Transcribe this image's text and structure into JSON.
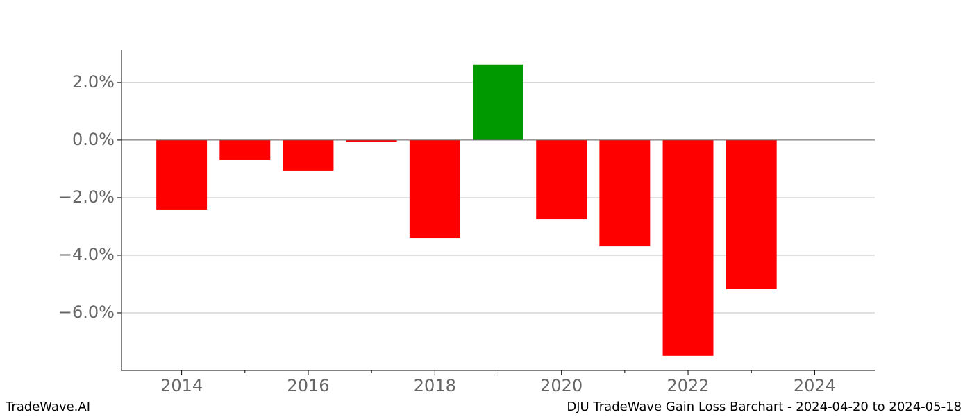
{
  "chart_data": {
    "type": "bar",
    "x": [
      2014,
      2015,
      2016,
      2017,
      2018,
      2019,
      2020,
      2021,
      2022,
      2023
    ],
    "values": [
      -2.41,
      -0.7,
      -1.06,
      -0.07,
      -3.4,
      2.63,
      -2.75,
      -3.69,
      -7.49,
      -5.18
    ],
    "positive_color": "#009900",
    "negative_color": "#ff0000",
    "xlim": [
      2013.05,
      2024.95
    ],
    "xticks": [
      2014,
      2016,
      2018,
      2020,
      2022,
      2024
    ],
    "xminorticks": [
      2015,
      2017,
      2019,
      2021,
      2023
    ],
    "ylim": [
      -8.0,
      3.13
    ],
    "yticks": [
      {
        "value": -6,
        "label": "−6.0%"
      },
      {
        "value": -4,
        "label": "−4.0%"
      },
      {
        "value": -2,
        "label": "−2.0%"
      },
      {
        "value": 0,
        "label": "0.0%"
      },
      {
        "value": 2,
        "label": "2.0%"
      }
    ],
    "grid": true
  },
  "footer": {
    "left": "TradeWave.AI",
    "right": "DJU TradeWave Gain Loss Barchart - 2024-04-20 to 2024-05-18"
  }
}
